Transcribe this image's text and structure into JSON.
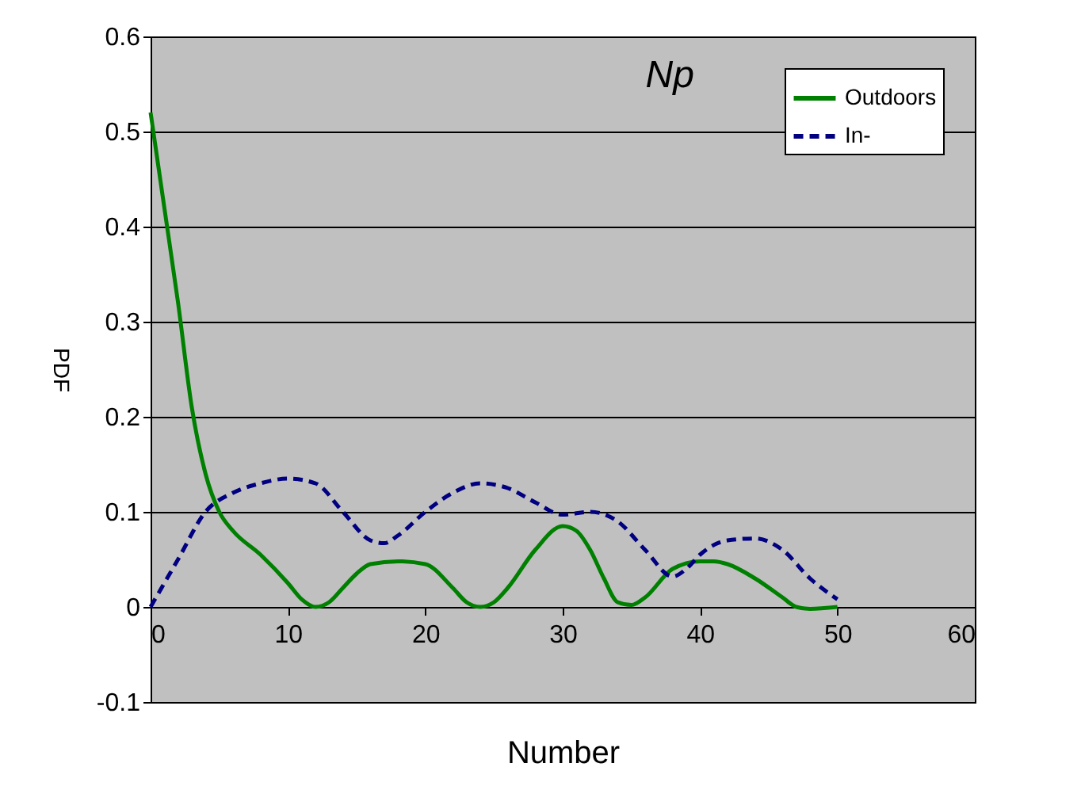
{
  "chart_data": {
    "type": "line",
    "title": "Np",
    "xlabel": "Number",
    "ylabel": "PDF",
    "xlim": [
      0,
      60
    ],
    "xticks": [
      0,
      10,
      20,
      30,
      40,
      50,
      60
    ],
    "ylim": [
      -0.1,
      0.6
    ],
    "yticks": [
      -0.1,
      0,
      0.1,
      0.2,
      0.3,
      0.4,
      0.5,
      0.6
    ],
    "grid": "y",
    "legend": "top right",
    "marker": "none",
    "series": [
      {
        "name": "Outdoors",
        "color": "#008000",
        "line_style": "solid",
        "x": [
          0,
          1,
          2,
          3,
          4,
          5,
          6,
          8,
          10,
          11,
          12,
          13,
          14,
          15,
          16,
          18,
          20,
          22,
          23,
          24,
          25,
          26,
          28,
          30,
          31,
          32,
          33,
          34,
          35,
          36,
          38,
          40,
          41,
          42,
          44,
          46,
          47,
          48,
          50
        ],
        "values": [
          0.52,
          0.42,
          0.32,
          0.21,
          0.14,
          0.1,
          0.08,
          0.055,
          0.025,
          0.008,
          0.0,
          0.005,
          0.02,
          0.035,
          0.045,
          0.048,
          0.045,
          0.02,
          0.005,
          0.0,
          0.005,
          0.02,
          0.06,
          0.085,
          0.08,
          0.06,
          0.03,
          0.005,
          0.002,
          0.01,
          0.04,
          0.048,
          0.048,
          0.045,
          0.03,
          0.01,
          0.0,
          -0.002,
          0.0
        ]
      },
      {
        "name": "In-",
        "color": "#000080",
        "line_style": "dashed",
        "x": [
          0,
          2,
          4,
          6,
          8,
          10,
          12,
          14,
          16,
          17,
          18,
          20,
          22,
          24,
          26,
          28,
          30,
          32,
          34,
          36,
          38,
          39,
          40,
          42,
          44,
          46,
          48,
          50
        ],
        "values": [
          0.0,
          0.05,
          0.1,
          0.12,
          0.13,
          0.135,
          0.13,
          0.1,
          0.07,
          0.067,
          0.075,
          0.1,
          0.12,
          0.13,
          0.125,
          0.11,
          0.097,
          0.1,
          0.09,
          0.06,
          0.032,
          0.04,
          0.055,
          0.07,
          0.072,
          0.06,
          0.03,
          0.008
        ]
      }
    ]
  }
}
